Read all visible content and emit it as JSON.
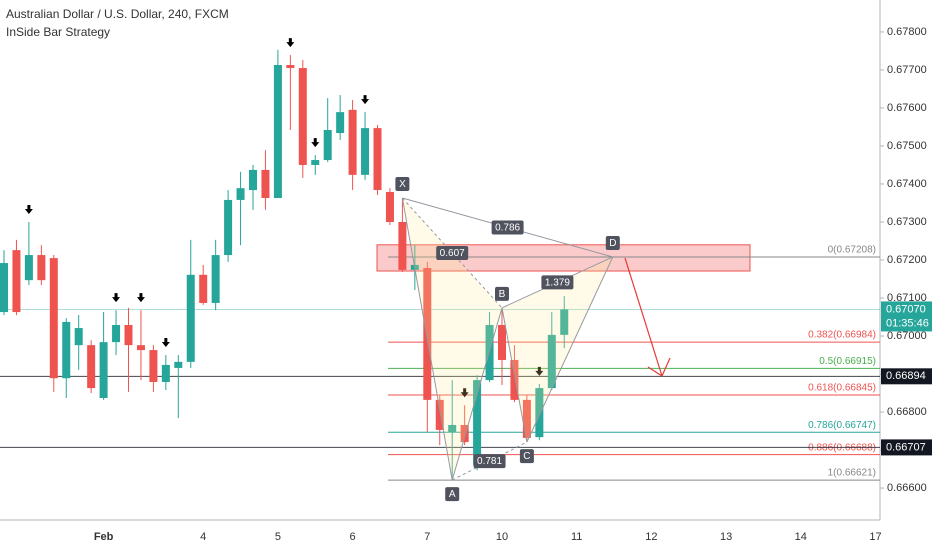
{
  "chart_data": {
    "type": "candlestick",
    "title": "Australian Dollar / U.S. Dollar, 240, FXCM",
    "subtitle": "InSide Bar Strategy",
    "up_color": "#26a69a",
    "down_color": "#ef5350",
    "grid": false,
    "ylim": [
      0.66516,
      0.67884
    ],
    "yticks": [
      {
        "value": 0.678,
        "label": "0.67800"
      },
      {
        "value": 0.677,
        "label": "0.67700"
      },
      {
        "value": 0.676,
        "label": "0.67600"
      },
      {
        "value": 0.675,
        "label": "0.67500"
      },
      {
        "value": 0.674,
        "label": "0.67400"
      },
      {
        "value": 0.673,
        "label": "0.67300"
      },
      {
        "value": 0.672,
        "label": "0.67200"
      },
      {
        "value": 0.671,
        "label": "0.67100"
      },
      {
        "value": 0.67,
        "label": "0.67000"
      },
      {
        "value": 0.669,
        "label": "0.66900"
      },
      {
        "value": 0.668,
        "label": "0.66800"
      },
      {
        "value": 0.667,
        "label": "0.66700"
      },
      {
        "value": 0.666,
        "label": "0.66600"
      }
    ],
    "categories": [
      null,
      null,
      null,
      null,
      null,
      null,
      null,
      null,
      "Feb",
      null,
      null,
      null,
      null,
      null,
      null,
      null,
      "4",
      null,
      null,
      null,
      null,
      null,
      "5",
      null,
      null,
      null,
      null,
      null,
      "6",
      null,
      null,
      null,
      null,
      null,
      "7",
      null,
      null,
      null,
      null,
      null,
      "10",
      null,
      null,
      null,
      null,
      null,
      "11",
      null,
      null,
      null,
      null,
      null,
      "12",
      null,
      null,
      null,
      null,
      null,
      "13",
      null,
      null,
      null,
      null,
      null,
      "14",
      null,
      null,
      null,
      null,
      null,
      "17"
    ],
    "open": [
      0.67063,
      0.67226,
      0.67147,
      0.67213,
      0.67205,
      0.66889,
      0.66976,
      0.66976,
      0.66837,
      0.66984,
      0.67029,
      0.66976,
      0.66963,
      0.66879,
      0.66916,
      0.66932,
      0.67161,
      0.67087,
      0.67213,
      0.67358,
      0.67384,
      0.67437,
      0.67363,
      0.67713,
      0.67705,
      0.6745,
      0.67463,
      0.67534,
      0.67595,
      0.67424,
      0.67547,
      0.67379,
      0.673,
      0.67174,
      0.67179,
      0.66832,
      0.66747,
      0.66766,
      0.66661,
      0.66884,
      0.67029,
      0.66937,
      0.66832,
      0.66734,
      0.66863,
      0.67003,
      null,
      null,
      null,
      null,
      null,
      null,
      null,
      null,
      null,
      null,
      null,
      null,
      null,
      null,
      null,
      null,
      null,
      null,
      null,
      null,
      null,
      null,
      null,
      null,
      null
    ],
    "high": [
      0.67226,
      0.67253,
      0.673,
      0.67239,
      0.67213,
      0.67047,
      0.67055,
      0.66989,
      0.67063,
      0.67068,
      0.67074,
      0.67068,
      0.66976,
      0.6695,
      0.6695,
      0.67253,
      0.67187,
      0.67253,
      0.67384,
      0.67432,
      0.6745,
      0.67489,
      0.67753,
      0.67739,
      0.67726,
      0.67476,
      0.67626,
      0.67634,
      0.67621,
      0.67589,
      0.67555,
      0.67389,
      0.67363,
      0.67239,
      0.67195,
      0.66845,
      0.66884,
      0.66818,
      0.66897,
      0.67063,
      0.67074,
      0.66976,
      0.66845,
      0.66874,
      0.67063,
      0.67105,
      null,
      null,
      null,
      null,
      null,
      null,
      null,
      null,
      null,
      null,
      null,
      null,
      null,
      null,
      null,
      null,
      null,
      null,
      null,
      null,
      null,
      null,
      null,
      null,
      null
    ],
    "low": [
      0.67055,
      0.67055,
      0.67134,
      0.67134,
      0.66853,
      0.66837,
      0.66911,
      0.6685,
      0.66832,
      0.6695,
      0.66853,
      0.66884,
      0.66853,
      0.66858,
      0.66784,
      0.66916,
      0.67082,
      0.67068,
      0.67195,
      0.67239,
      0.67332,
      0.67332,
      0.67363,
      0.67542,
      0.67416,
      0.67424,
      0.67458,
      0.67516,
      0.67384,
      0.67411,
      0.67371,
      0.67292,
      0.67168,
      0.67121,
      0.66747,
      0.66713,
      0.66621,
      0.66713,
      0.66647,
      0.66879,
      0.66871,
      0.66826,
      0.66721,
      0.66726,
      0.66858,
      0.66968,
      null,
      null,
      null,
      null,
      null,
      null,
      null,
      null,
      null,
      null,
      null,
      null,
      null,
      null,
      null,
      null,
      null,
      null,
      null,
      null,
      null,
      null,
      null,
      null,
      null
    ],
    "close": [
      0.67192,
      0.67063,
      0.67213,
      0.67147,
      0.66889,
      0.67037,
      0.67021,
      0.66863,
      0.66984,
      0.67029,
      0.66976,
      0.66963,
      0.66879,
      0.66924,
      0.66932,
      0.67161,
      0.67087,
      0.67213,
      0.67358,
      0.67389,
      0.67437,
      0.67363,
      0.67713,
      0.67705,
      0.6745,
      0.67463,
      0.67542,
      0.67589,
      0.67424,
      0.67547,
      0.67384,
      0.673,
      0.67174,
      0.67187,
      0.66832,
      0.66753,
      0.66766,
      0.66721,
      0.66884,
      0.67029,
      0.66937,
      0.66832,
      0.66732,
      0.66863,
      0.67003,
      0.6707,
      null,
      null,
      null,
      null,
      null,
      null,
      null,
      null,
      null,
      null,
      null,
      null,
      null,
      null,
      null,
      null,
      null,
      null,
      null,
      null,
      null,
      null,
      null,
      null,
      null
    ],
    "price_lines": [
      {
        "value": 0.6707,
        "label": "0.67070",
        "color": "#26a69a",
        "countdown": "01:35:46"
      },
      {
        "value": 0.66894,
        "label": "0.66894",
        "color": "#131722"
      },
      {
        "value": 0.66707,
        "label": "0.66707",
        "color": "#131722"
      }
    ],
    "zone": [
      0.67171,
      0.6724
    ],
    "fib_levels": [
      {
        "value": 0.67208,
        "label": "0(0.67208)",
        "color": "#888888"
      },
      {
        "value": 0.66984,
        "label": "0.382(0.66984)",
        "color": "#ef5350"
      },
      {
        "value": 0.66915,
        "label": "0.5(0.66915)",
        "color": "#4caf50"
      },
      {
        "value": 0.66845,
        "label": "0.618(0.66845)",
        "color": "#ef5350"
      },
      {
        "value": 0.66747,
        "label": "0.786(0.66747)",
        "color": "#26a69a"
      },
      {
        "value": 0.66688,
        "label": "0.886(0.66688)",
        "color": "#ef5350"
      },
      {
        "value": 0.66621,
        "label": "1(0.66621)",
        "color": "#888888"
      }
    ],
    "pattern_points": [
      {
        "label": "X",
        "value": 0.67363
      },
      {
        "label": "A",
        "value": 0.66621
      },
      {
        "label": "B",
        "value": 0.67074
      },
      {
        "label": "C",
        "value": 0.66721
      },
      {
        "label": "D",
        "value": 0.67208
      }
    ],
    "pattern_ratios": [
      0.786,
      0.607,
      1.379,
      0.781
    ]
  }
}
